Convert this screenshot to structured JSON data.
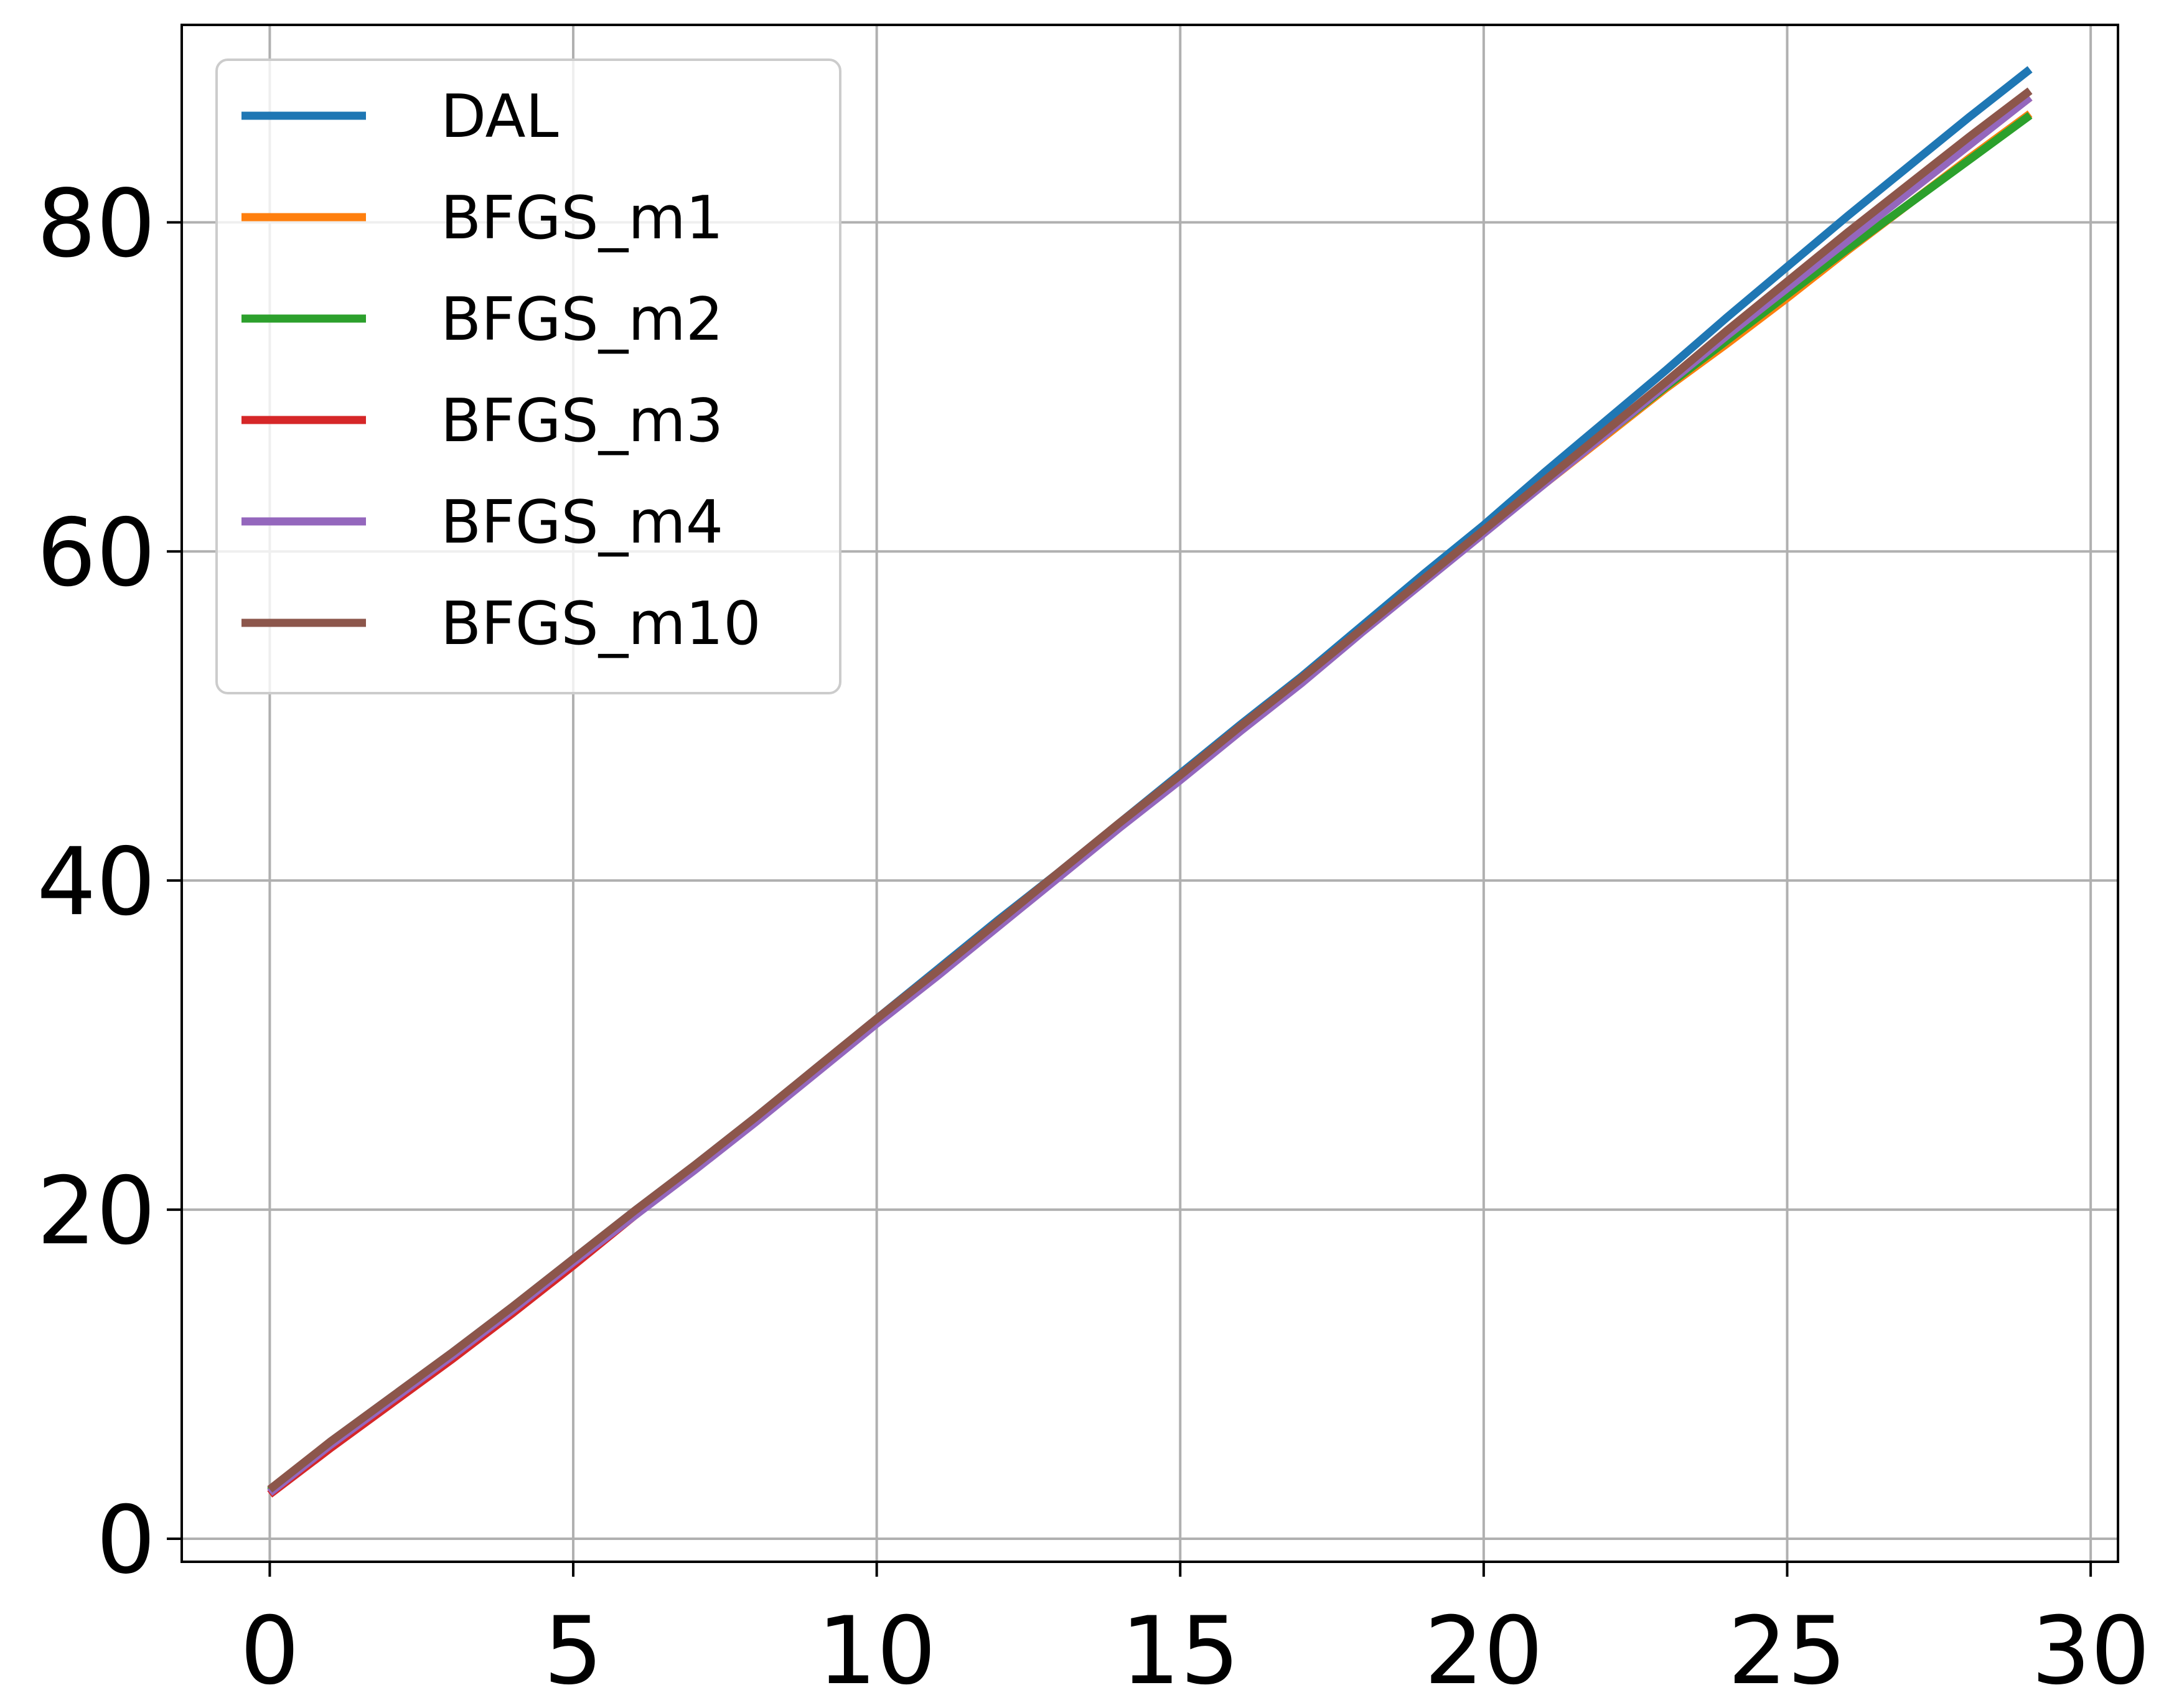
{
  "chart_data": {
    "type": "line",
    "title": "",
    "xlabel": "",
    "ylabel": "",
    "xlim": [
      -1.45,
      30.45
    ],
    "ylim": [
      -1.4,
      92
    ],
    "xticks": [
      0,
      5,
      10,
      15,
      20,
      25,
      30
    ],
    "yticks": [
      0,
      20,
      40,
      60,
      80
    ],
    "grid": true,
    "legend_position": "upper-left",
    "x": [
      0,
      1,
      2,
      3,
      4,
      5,
      6,
      7,
      8,
      9,
      10,
      11,
      12,
      13,
      14,
      15,
      16,
      17,
      18,
      19,
      20,
      21,
      22,
      23,
      24,
      25,
      26,
      27,
      28,
      29
    ],
    "series": [
      {
        "name": "DAL",
        "color": "#1f77b4",
        "values": [
          2.9,
          5.9,
          8.6,
          11.3,
          14.1,
          17.0,
          19.9,
          22.7,
          25.6,
          28.6,
          31.6,
          34.6,
          37.6,
          40.5,
          43.5,
          46.5,
          49.5,
          52.4,
          55.5,
          58.6,
          61.6,
          64.8,
          67.9,
          71.0,
          74.2,
          77.3,
          80.4,
          83.4,
          86.4,
          89.3
        ]
      },
      {
        "name": "BFGS_m1",
        "color": "#ff7f0e",
        "values": [
          2.9,
          5.8,
          8.5,
          11.2,
          14.0,
          16.9,
          19.8,
          22.6,
          25.5,
          28.5,
          31.5,
          34.4,
          37.4,
          40.4,
          43.4,
          46.3,
          49.2,
          52.2,
          55.2,
          58.2,
          61.2,
          64.1,
          67.0,
          69.9,
          72.6,
          75.4,
          78.3,
          81.1,
          83.9,
          86.6
        ]
      },
      {
        "name": "BFGS_m2",
        "color": "#2ca02c",
        "values": [
          2.9,
          5.8,
          8.5,
          11.2,
          14.0,
          16.9,
          19.8,
          22.6,
          25.5,
          28.5,
          31.5,
          34.4,
          37.4,
          40.4,
          43.4,
          46.3,
          49.2,
          52.2,
          55.2,
          58.2,
          61.2,
          64.2,
          67.1,
          70.0,
          72.8,
          75.6,
          78.4,
          81.1,
          83.8,
          86.5
        ]
      },
      {
        "name": "BFGS_m3",
        "color": "#d62728",
        "values": [
          2.7,
          5.5,
          8.2,
          10.9,
          13.7,
          16.6,
          19.6,
          22.5,
          25.4,
          28.4,
          31.4,
          34.4,
          37.4,
          40.4,
          43.4,
          46.3,
          49.3,
          52.2,
          55.2,
          58.2,
          61.2,
          64.2,
          67.3,
          70.3,
          73.3,
          76.3,
          79.2,
          82.0,
          84.8,
          87.6
        ]
      },
      {
        "name": "BFGS_m4",
        "color": "#9467bd",
        "values": [
          2.8,
          5.7,
          8.4,
          11.1,
          13.9,
          16.8,
          19.6,
          22.4,
          25.3,
          28.3,
          31.3,
          34.2,
          37.2,
          40.2,
          43.2,
          46.1,
          49.1,
          52.0,
          55.1,
          58.1,
          61.1,
          64.1,
          67.1,
          70.1,
          73.1,
          76.0,
          78.9,
          81.8,
          84.7,
          87.6
        ]
      },
      {
        "name": "BFGS_m10",
        "color": "#8c564b",
        "values": [
          3.0,
          5.9,
          8.6,
          11.3,
          14.1,
          17.0,
          19.9,
          22.7,
          25.6,
          28.6,
          31.6,
          34.5,
          37.5,
          40.5,
          43.5,
          46.4,
          49.4,
          52.3,
          55.3,
          58.3,
          61.3,
          64.3,
          67.3,
          70.3,
          73.4,
          76.4,
          79.4,
          82.3,
          85.2,
          88.0
        ]
      }
    ]
  }
}
